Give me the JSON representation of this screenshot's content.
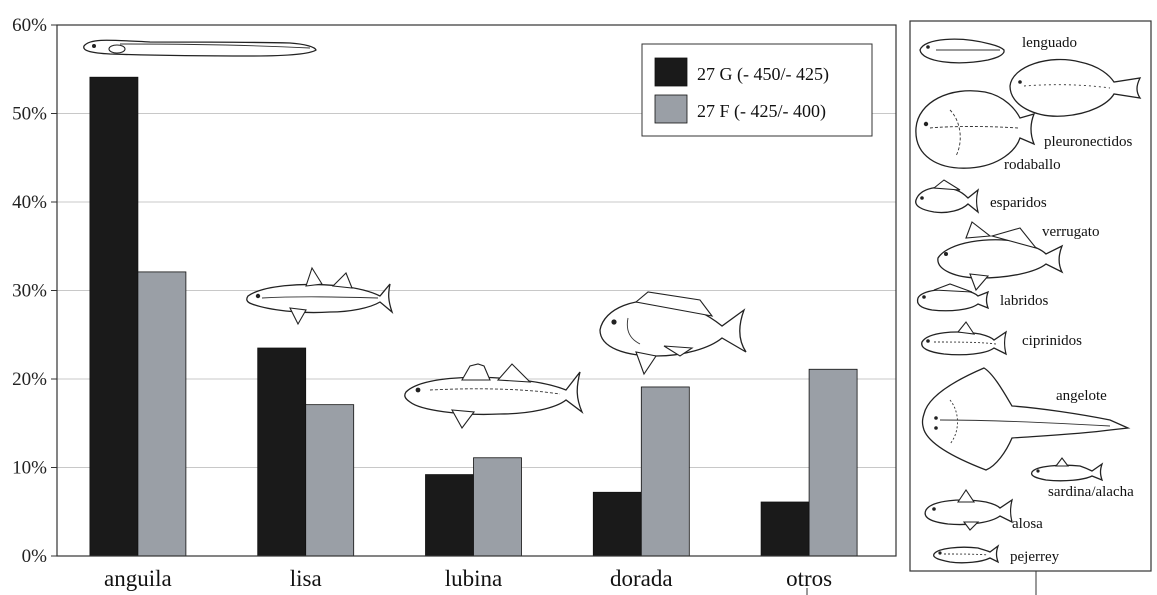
{
  "chart_data": {
    "type": "bar",
    "categories": [
      "anguila",
      "lisa",
      "lubina",
      "dorada",
      "otros"
    ],
    "series": [
      {
        "name": "27 G (- 450/- 425)",
        "values": [
          54.1,
          23.5,
          9.2,
          7.2,
          6.1
        ],
        "color": "#1a1a1a"
      },
      {
        "name": "27 F (- 425/- 400)",
        "values": [
          32.1,
          17.1,
          11.1,
          19.1,
          21.1
        ],
        "color": "#9a9fa6"
      }
    ],
    "y_ticks": [
      "0%",
      "10%",
      "20%",
      "30%",
      "40%",
      "50%",
      "60%"
    ],
    "ylim": [
      0,
      60
    ],
    "grid": true,
    "legend_position": "top-right"
  },
  "side_panel": {
    "labels": {
      "lenguado": "lenguado",
      "pleuronectidos": "pleuronectidos",
      "rodaballo": "rodaballo",
      "esparidos": "esparidos",
      "verrugato": "verrugato",
      "labridos": "labridos",
      "ciprinidos": "ciprinidos",
      "angelote": "angelote",
      "sardina": "sardina/alacha",
      "alosa": "alosa",
      "pejerrey": "pejerrey"
    }
  }
}
